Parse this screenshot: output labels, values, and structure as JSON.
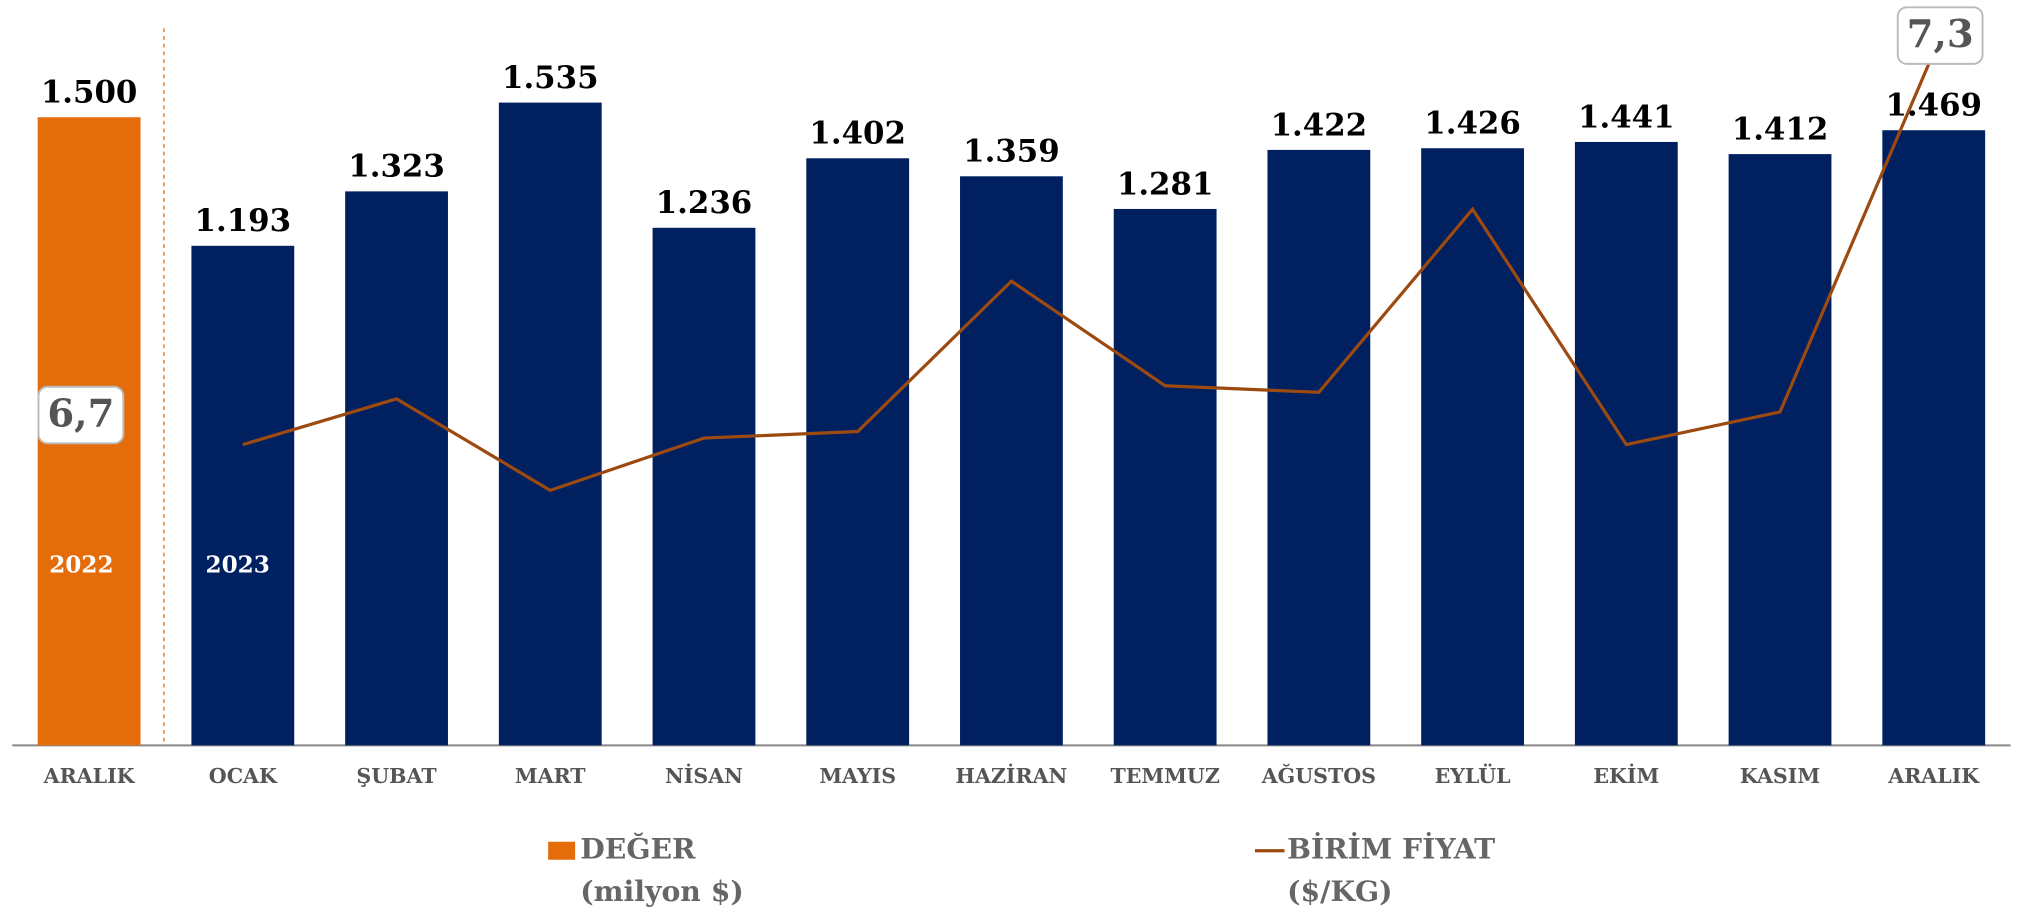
{
  "chart_data": {
    "type": "bar",
    "categories": [
      "ARALIK",
      "OCAK",
      "ŞUBAT",
      "MART",
      "NİSAN",
      "MAYIS",
      "HAZİRAN",
      "TEMMUZ",
      "AĞUSTOS",
      "EYLÜL",
      "EKİM",
      "KASIM",
      "ARALIK"
    ],
    "series": [
      {
        "name": "DEĞER (milyon $)",
        "type": "bar",
        "color": "#002060",
        "colors": [
          "#E46C0A",
          "#002060",
          "#002060",
          "#002060",
          "#002060",
          "#002060",
          "#002060",
          "#002060",
          "#002060",
          "#002060",
          "#002060",
          "#002060",
          "#002060"
        ],
        "values": [
          1500,
          1193,
          1323,
          1535,
          1236,
          1402,
          1359,
          1281,
          1422,
          1426,
          1441,
          1412,
          1469
        ],
        "value_labels": [
          "1.500",
          "1.193",
          "1.323",
          "1.535",
          "1.236",
          "1.402",
          "1.359",
          "1.281",
          "1.422",
          "1.426",
          "1.441",
          "1.412",
          "1.469"
        ]
      },
      {
        "name": "BİRİM FİYAT ($/KG)",
        "type": "line",
        "axis": "y2",
        "color": "#9C4A10",
        "values": [
          null,
          6.7,
          6.77,
          6.63,
          6.71,
          6.72,
          6.95,
          6.79,
          6.78,
          7.06,
          6.7,
          6.75,
          7.3
        ],
        "value_labels": [
          null,
          "6,7",
          null,
          null,
          null,
          null,
          null,
          null,
          null,
          null,
          null,
          null,
          "7,3"
        ]
      }
    ],
    "annotations": [
      "2022",
      "2023"
    ],
    "ylim": [
      0,
      1780
    ],
    "y2lim": [
      6.24,
      7.38
    ]
  }
}
